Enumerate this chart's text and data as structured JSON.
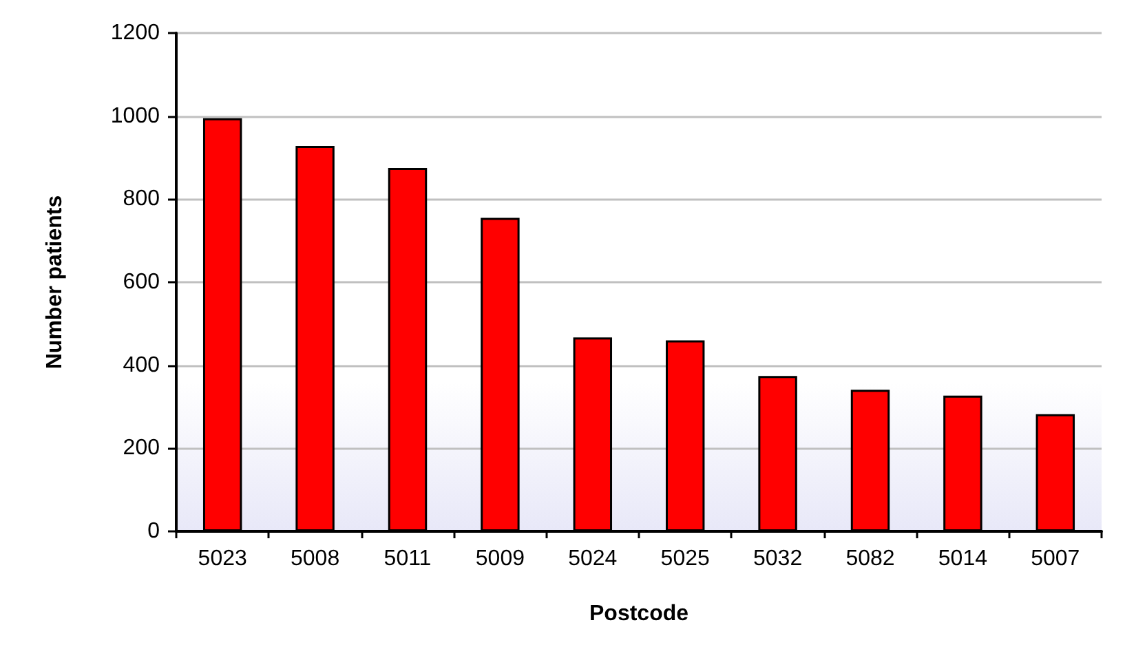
{
  "chart_data": {
    "type": "bar",
    "xlabel": "Postcode",
    "ylabel": "Number patients",
    "categories": [
      "5023",
      "5008",
      "5011",
      "5009",
      "5024",
      "5025",
      "5032",
      "5082",
      "5014",
      "5007"
    ],
    "values": [
      995,
      928,
      875,
      755,
      467,
      460,
      374,
      341,
      327,
      282
    ],
    "color": "#ff0000",
    "ylim": [
      0,
      1200
    ],
    "yticks": [
      0,
      200,
      400,
      600,
      800,
      1000,
      1200
    ],
    "grid": "y"
  }
}
